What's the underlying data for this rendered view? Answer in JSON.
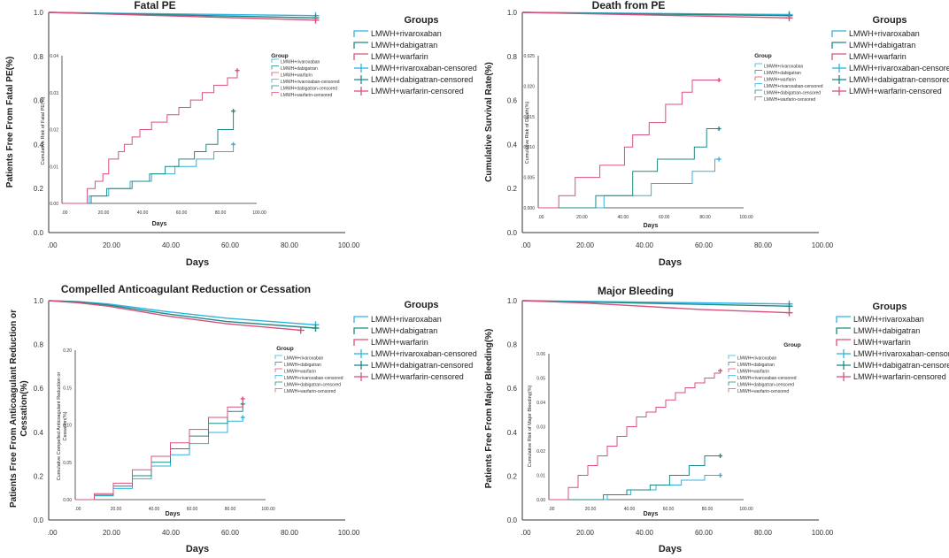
{
  "colors": {
    "rivaroxaban": "#2eb3e0",
    "dabigatran": "#1f8a84",
    "warfarin": "#d9507a",
    "axis": "#333333"
  },
  "chart_data": [
    {
      "type": "line",
      "id": "fatal-pe",
      "title": "Fatal PE",
      "xlabel": "Days",
      "ylabel": "Patients Free From Fatal PE(%)",
      "xlim": [
        0,
        100
      ],
      "ylim": [
        0,
        1
      ],
      "xticks": [
        ".00",
        "20.00",
        "40.00",
        "60.00",
        "80.00",
        "100.00"
      ],
      "yticks": [
        "0.0",
        "0.2",
        "0.4",
        "0.6",
        "0.8",
        "1.0"
      ],
      "legend": {
        "title": "Groups",
        "entries": [
          "LMWH+rivaroxaban",
          "LMWH+dabigatran",
          "LMWH+warfarin",
          "LMWH+rivaroxaban-censored",
          "LMWH+dabigatran-censored",
          "LMWH+warfarin-censored"
        ]
      },
      "series": [
        {
          "name": "LMWH+rivaroxaban",
          "x": [
            0,
            90
          ],
          "y": [
            1.0,
            0.985
          ]
        },
        {
          "name": "LMWH+dabigatran",
          "x": [
            0,
            90
          ],
          "y": [
            1.0,
            0.975
          ]
        },
        {
          "name": "LMWH+warfarin",
          "x": [
            0,
            90
          ],
          "y": [
            1.0,
            0.965
          ]
        }
      ],
      "inset": {
        "xlabel": "Days",
        "ylabel": "Cumulative Risk of Fatal PE(%)",
        "legend_title": "Group",
        "xlim": [
          0,
          100
        ],
        "ylim": [
          0,
          0.04
        ],
        "xticks": [
          ".00",
          "20.00",
          "40.00",
          "60.00",
          "80.00",
          "100.00"
        ],
        "yticks": [
          "0.00",
          "0.01",
          "0.02",
          "0.03",
          "0.04"
        ],
        "legend": [
          "LMWH+rivaroxaban",
          "LMWH+dabigatran",
          "LMWH+warfarin",
          "LMWH+rivaroxaban-censored",
          "LMWH+dabigatran-censored",
          "LMWH+warfarin-censored"
        ],
        "series": [
          {
            "name": "LMWH+rivaroxaban",
            "x": [
              0,
              14,
              24,
              35,
              46,
              58,
              69,
              78,
              88
            ],
            "y": [
              0,
              0.002,
              0.004,
              0.006,
              0.008,
              0.01,
              0.012,
              0.014,
              0.016
            ]
          },
          {
            "name": "LMWH+dabigatran",
            "x": [
              0,
              15,
              23,
              36,
              45,
              53,
              60,
              68,
              74,
              80,
              88
            ],
            "y": [
              0,
              0.002,
              0.004,
              0.006,
              0.008,
              0.01,
              0.012,
              0.014,
              0.016,
              0.02,
              0.025
            ]
          },
          {
            "name": "LMWH+warfarin",
            "x": [
              0,
              13,
              17,
              21,
              24,
              29,
              32,
              36,
              40,
              46,
              54,
              60,
              66,
              72,
              78,
              85,
              90
            ],
            "y": [
              0,
              0.004,
              0.006,
              0.008,
              0.012,
              0.014,
              0.016,
              0.018,
              0.02,
              0.022,
              0.024,
              0.026,
              0.028,
              0.03,
              0.032,
              0.034,
              0.036
            ]
          }
        ]
      }
    },
    {
      "type": "line",
      "id": "death-from-pe",
      "title": "Death from PE",
      "xlabel": "Days",
      "ylabel": "Cumulative Survival Rate(%)",
      "xlim": [
        0,
        100
      ],
      "ylim": [
        0,
        1
      ],
      "xticks": [
        ".00",
        "20.00",
        "40.00",
        "60.00",
        "80.00",
        "100.00"
      ],
      "yticks": [
        "0.0",
        "0.2",
        "0.4",
        "0.6",
        "0.8",
        "1.0"
      ],
      "legend": {
        "title": "Groups",
        "entries": [
          "LMWH+rivaroxaban",
          "LMWH+dabigatran",
          "LMWH+warfarin",
          "LMWH+rivaroxaban-censored",
          "LMWH+dabigatran-censored",
          "LMWH+warfarin-censored"
        ]
      },
      "series": [
        {
          "name": "LMWH+rivaroxaban",
          "x": [
            0,
            90
          ],
          "y": [
            1.0,
            0.99
          ]
        },
        {
          "name": "LMWH+dabigatran",
          "x": [
            0,
            90
          ],
          "y": [
            1.0,
            0.985
          ]
        },
        {
          "name": "LMWH+warfarin",
          "x": [
            0,
            90
          ],
          "y": [
            1.0,
            0.975
          ]
        }
      ],
      "inset": {
        "xlabel": "Days",
        "ylabel": "Cumulative Risk of Death(%)",
        "legend_title": "Group",
        "xlim": [
          0,
          100
        ],
        "ylim": [
          0,
          0.025
        ],
        "xticks": [
          ".00",
          "20.00",
          "40.00",
          "60.00",
          "80.00",
          "100.00"
        ],
        "yticks": [
          "0.000",
          "0.005",
          "0.010",
          "0.015",
          "0.020",
          "0.025"
        ],
        "legend": [
          "LMWH+rivaroxaban",
          "LMWH+dabigatran",
          "LMWH+warfarin",
          "LMWH+rivaroxaban-censored",
          "LMWH+dabigatran-censored",
          "LMWH+warfarin-censored"
        ],
        "series": [
          {
            "name": "LMWH+rivaroxaban",
            "x": [
              0,
              32,
              55,
              75,
              86,
              88
            ],
            "y": [
              0,
              0.002,
              0.004,
              0.006,
              0.008,
              0.008
            ]
          },
          {
            "name": "LMWH+dabigatran",
            "x": [
              0,
              28,
              46,
              58,
              76,
              82,
              88
            ],
            "y": [
              0,
              0.002,
              0.006,
              0.008,
              0.01,
              0.013,
              0.013
            ]
          },
          {
            "name": "LMWH+warfarin",
            "x": [
              0,
              10,
              18,
              30,
              42,
              46,
              54,
              62,
              70,
              75,
              88
            ],
            "y": [
              0,
              0.002,
              0.005,
              0.007,
              0.01,
              0.012,
              0.014,
              0.017,
              0.019,
              0.021,
              0.021
            ]
          }
        ]
      }
    },
    {
      "type": "line",
      "id": "compelled-reduction",
      "title": "Compelled Anticoagulant Reduction or Cessation",
      "xlabel": "Days",
      "ylabel": "Patients Free From Anticoagulant Reduction or Cessation(%)",
      "xlim": [
        0,
        100
      ],
      "ylim": [
        0,
        1
      ],
      "xticks": [
        ".00",
        "20.00",
        "40.00",
        "60.00",
        "80.00",
        "100.00"
      ],
      "yticks": [
        "0.0",
        "0.2",
        "0.4",
        "0.6",
        "0.8",
        "1.0"
      ],
      "legend": {
        "title": "Groups",
        "entries": [
          "LMWH+rivaroxaban",
          "LMWH+dabigatran",
          "LMWH+warfarin",
          "LMWH+rivaroxaban-censored",
          "LMWH+dabigatran-censored",
          "LMWH+warfarin-censored"
        ]
      },
      "series": [
        {
          "name": "LMWH+rivaroxaban",
          "x": [
            0,
            10,
            20,
            40,
            60,
            90
          ],
          "y": [
            1.0,
            0.995,
            0.985,
            0.95,
            0.92,
            0.89
          ]
        },
        {
          "name": "LMWH+dabigatran",
          "x": [
            0,
            10,
            20,
            40,
            60,
            90
          ],
          "y": [
            1.0,
            0.995,
            0.98,
            0.94,
            0.905,
            0.875
          ]
        },
        {
          "name": "LMWH+warfarin",
          "x": [
            0,
            10,
            20,
            40,
            60,
            85
          ],
          "y": [
            1.0,
            0.99,
            0.975,
            0.93,
            0.895,
            0.865
          ]
        }
      ],
      "inset": {
        "xlabel": "Days",
        "ylabel": "Cumulative Compelled Anticoagulant Reduction or Cessation(%)",
        "legend_title": "Group",
        "xlim": [
          0,
          100
        ],
        "ylim": [
          0,
          0.2
        ],
        "xticks": [
          ".00",
          "20.00",
          "40.00",
          "60.00",
          "80.00",
          "100.00"
        ],
        "yticks": [
          "0.00",
          "0.05",
          "0.10",
          "0.15",
          "0.20"
        ],
        "legend": [
          "LMWH+rivaroxaban",
          "LMWH+dabigatran",
          "LMWH+warfarin",
          "LMWH+rivaroxaban-censored",
          "LMWH+dabigatran-censored",
          "LMWH+warfarin-censored"
        ],
        "series": [
          {
            "name": "LMWH+rivaroxaban",
            "x": [
              0,
              10,
              20,
              30,
              40,
              50,
              60,
              70,
              80,
              88
            ],
            "y": [
              0,
              0.005,
              0.015,
              0.028,
              0.045,
              0.06,
              0.075,
              0.09,
              0.105,
              0.11
            ]
          },
          {
            "name": "LMWH+dabigatran",
            "x": [
              0,
              10,
              20,
              30,
              40,
              50,
              60,
              70,
              80,
              88
            ],
            "y": [
              0,
              0.006,
              0.018,
              0.032,
              0.05,
              0.068,
              0.085,
              0.102,
              0.118,
              0.128
            ]
          },
          {
            "name": "LMWH+warfarin",
            "x": [
              0,
              10,
              20,
              30,
              40,
              50,
              60,
              70,
              80,
              88
            ],
            "y": [
              0,
              0.008,
              0.022,
              0.04,
              0.058,
              0.076,
              0.094,
              0.11,
              0.124,
              0.135
            ]
          }
        ]
      }
    },
    {
      "type": "line",
      "id": "major-bleeding",
      "title": "Major Bleeding",
      "xlabel": "Days",
      "ylabel": "Patients Free From Major Bleeding(%)",
      "xlim": [
        0,
        100
      ],
      "ylim": [
        0,
        1
      ],
      "xticks": [
        ".00",
        "20.00",
        "40.00",
        "60.00",
        "80.00",
        "100.00"
      ],
      "yticks": [
        "0.0",
        "0.2",
        "0.4",
        "0.6",
        "0.8",
        "1.0"
      ],
      "legend": {
        "title": "Groups",
        "entries": [
          "LMWH+rivaroxaban",
          "LMWH+dabigatran",
          "LMWH+warfarin",
          "LMWH+rivaroxaban-censored",
          "LMWH+dabigatran-censored",
          "LMWH+warfarin-censored"
        ]
      },
      "series": [
        {
          "name": "LMWH+rivaroxaban",
          "x": [
            0,
            90
          ],
          "y": [
            1.0,
            0.985
          ]
        },
        {
          "name": "LMWH+dabigatran",
          "x": [
            0,
            90
          ],
          "y": [
            1.0,
            0.975
          ]
        },
        {
          "name": "LMWH+warfarin",
          "x": [
            0,
            20,
            40,
            60,
            90
          ],
          "y": [
            1.0,
            0.99,
            0.975,
            0.96,
            0.945
          ]
        }
      ],
      "inset": {
        "xlabel": "Days",
        "ylabel": "Cumulative Risk of Major Bleeding(%)",
        "legend_title": "Group",
        "xlim": [
          0,
          100
        ],
        "ylim": [
          0,
          0.06
        ],
        "xticks": [
          ".00",
          "20.00",
          "40.00",
          "60.00",
          "80.00",
          "100.00"
        ],
        "yticks": [
          "0.00",
          "0.01",
          "0.02",
          "0.03",
          "0.04",
          "0.05",
          "0.06"
        ],
        "legend": [
          "LMWH+rivaroxaban",
          "LMWH+dabigatran",
          "LMWH+warfarin",
          "LMWH+rivaroxaban-censored",
          "LMWH+dabigatran-censored",
          "LMWH+warfarin-censored"
        ],
        "series": [
          {
            "name": "LMWH+rivaroxaban",
            "x": [
              0,
              30,
              42,
              55,
              68,
              80,
              88
            ],
            "y": [
              0,
              0.002,
              0.004,
              0.006,
              0.008,
              0.01,
              0.01
            ]
          },
          {
            "name": "LMWH+dabigatran",
            "x": [
              0,
              28,
              40,
              52,
              62,
              72,
              80,
              88
            ],
            "y": [
              0,
              0.002,
              0.004,
              0.006,
              0.01,
              0.014,
              0.018,
              0.018
            ]
          },
          {
            "name": "LMWH+warfarin",
            "x": [
              0,
              10,
              15,
              20,
              25,
              30,
              35,
              40,
              45,
              50,
              55,
              60,
              65,
              70,
              75,
              80,
              85,
              88
            ],
            "y": [
              0,
              0.005,
              0.01,
              0.014,
              0.018,
              0.022,
              0.026,
              0.03,
              0.034,
              0.036,
              0.038,
              0.041,
              0.044,
              0.046,
              0.048,
              0.05,
              0.052,
              0.053
            ]
          }
        ]
      }
    }
  ]
}
